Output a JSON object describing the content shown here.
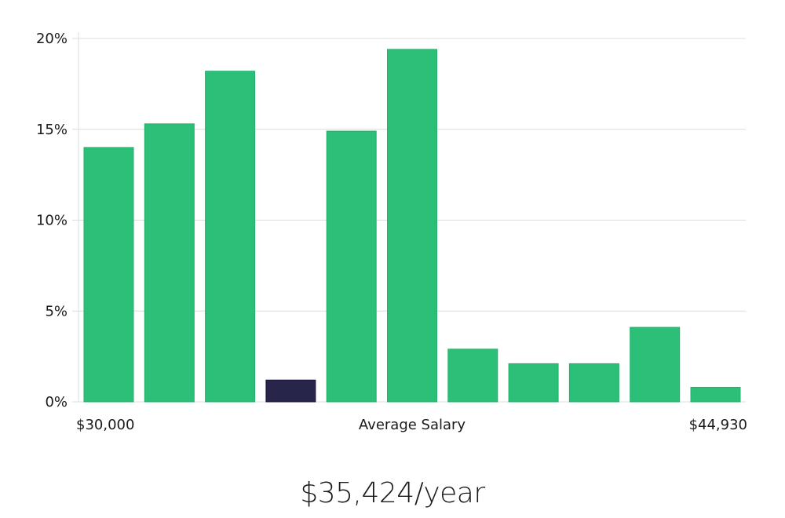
{
  "chart_data": {
    "type": "bar",
    "title": "",
    "xlabel": "Average Salary",
    "ylabel": "",
    "x_min_label": "$30,000",
    "x_max_label": "$44,930",
    "ylim": [
      0,
      20
    ],
    "yticks": [
      0,
      5,
      10,
      15,
      20
    ],
    "ytick_labels": [
      "0%",
      "5%",
      "10%",
      "15%",
      "20%"
    ],
    "values": [
      14.0,
      15.3,
      18.2,
      1.2,
      14.9,
      19.4,
      2.9,
      2.1,
      2.1,
      4.1,
      0.8
    ],
    "highlight_index": 3,
    "colors": {
      "bar": "#2bbf77",
      "highlight": "#27254a",
      "grid": "#dcdcdc"
    },
    "grid": true
  },
  "summary": {
    "average_salary": "$35,424/year"
  }
}
